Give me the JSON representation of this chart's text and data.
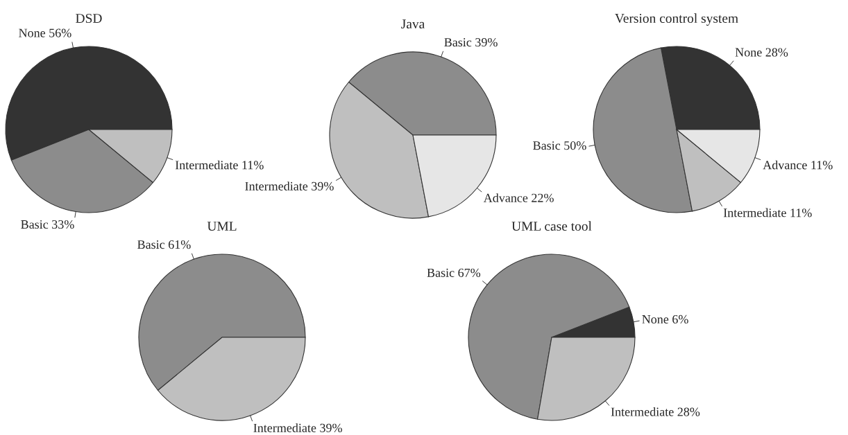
{
  "chart_data": [
    {
      "type": "pie",
      "title": "DSD",
      "categories": [
        "None",
        "Basic",
        "Intermediate"
      ],
      "values": [
        56,
        33,
        11
      ],
      "value_labels": [
        "56%",
        "33%",
        "11%"
      ],
      "colors": [
        "#333333",
        "#8c8c8c",
        "#bfbfbf"
      ]
    },
    {
      "type": "pie",
      "title": "Java",
      "categories": [
        "Basic",
        "Intermediate",
        "Advance"
      ],
      "values": [
        39,
        39,
        22
      ],
      "value_labels": [
        "39%",
        "39%",
        "22%"
      ],
      "colors": [
        "#8c8c8c",
        "#bfbfbf",
        "#e6e6e6"
      ]
    },
    {
      "type": "pie",
      "title": "Version control system",
      "categories": [
        "None",
        "Basic",
        "Intermediate",
        "Advance"
      ],
      "values": [
        28,
        50,
        11,
        11
      ],
      "value_labels": [
        "28%",
        "50%",
        "11%",
        "11%"
      ],
      "colors": [
        "#333333",
        "#8c8c8c",
        "#bfbfbf",
        "#e6e6e6"
      ]
    },
    {
      "type": "pie",
      "title": "UML",
      "categories": [
        "Basic",
        "Intermediate"
      ],
      "values": [
        61,
        39
      ],
      "value_labels": [
        "61%",
        "39%"
      ],
      "colors": [
        "#8c8c8c",
        "#bfbfbf"
      ]
    },
    {
      "type": "pie",
      "title": "UML case tool",
      "categories": [
        "None",
        "Basic",
        "Intermediate"
      ],
      "values": [
        6,
        67,
        28
      ],
      "value_labels": [
        "6%",
        "67%",
        "28%"
      ],
      "colors": [
        "#333333",
        "#8c8c8c",
        "#bfbfbf"
      ]
    }
  ]
}
